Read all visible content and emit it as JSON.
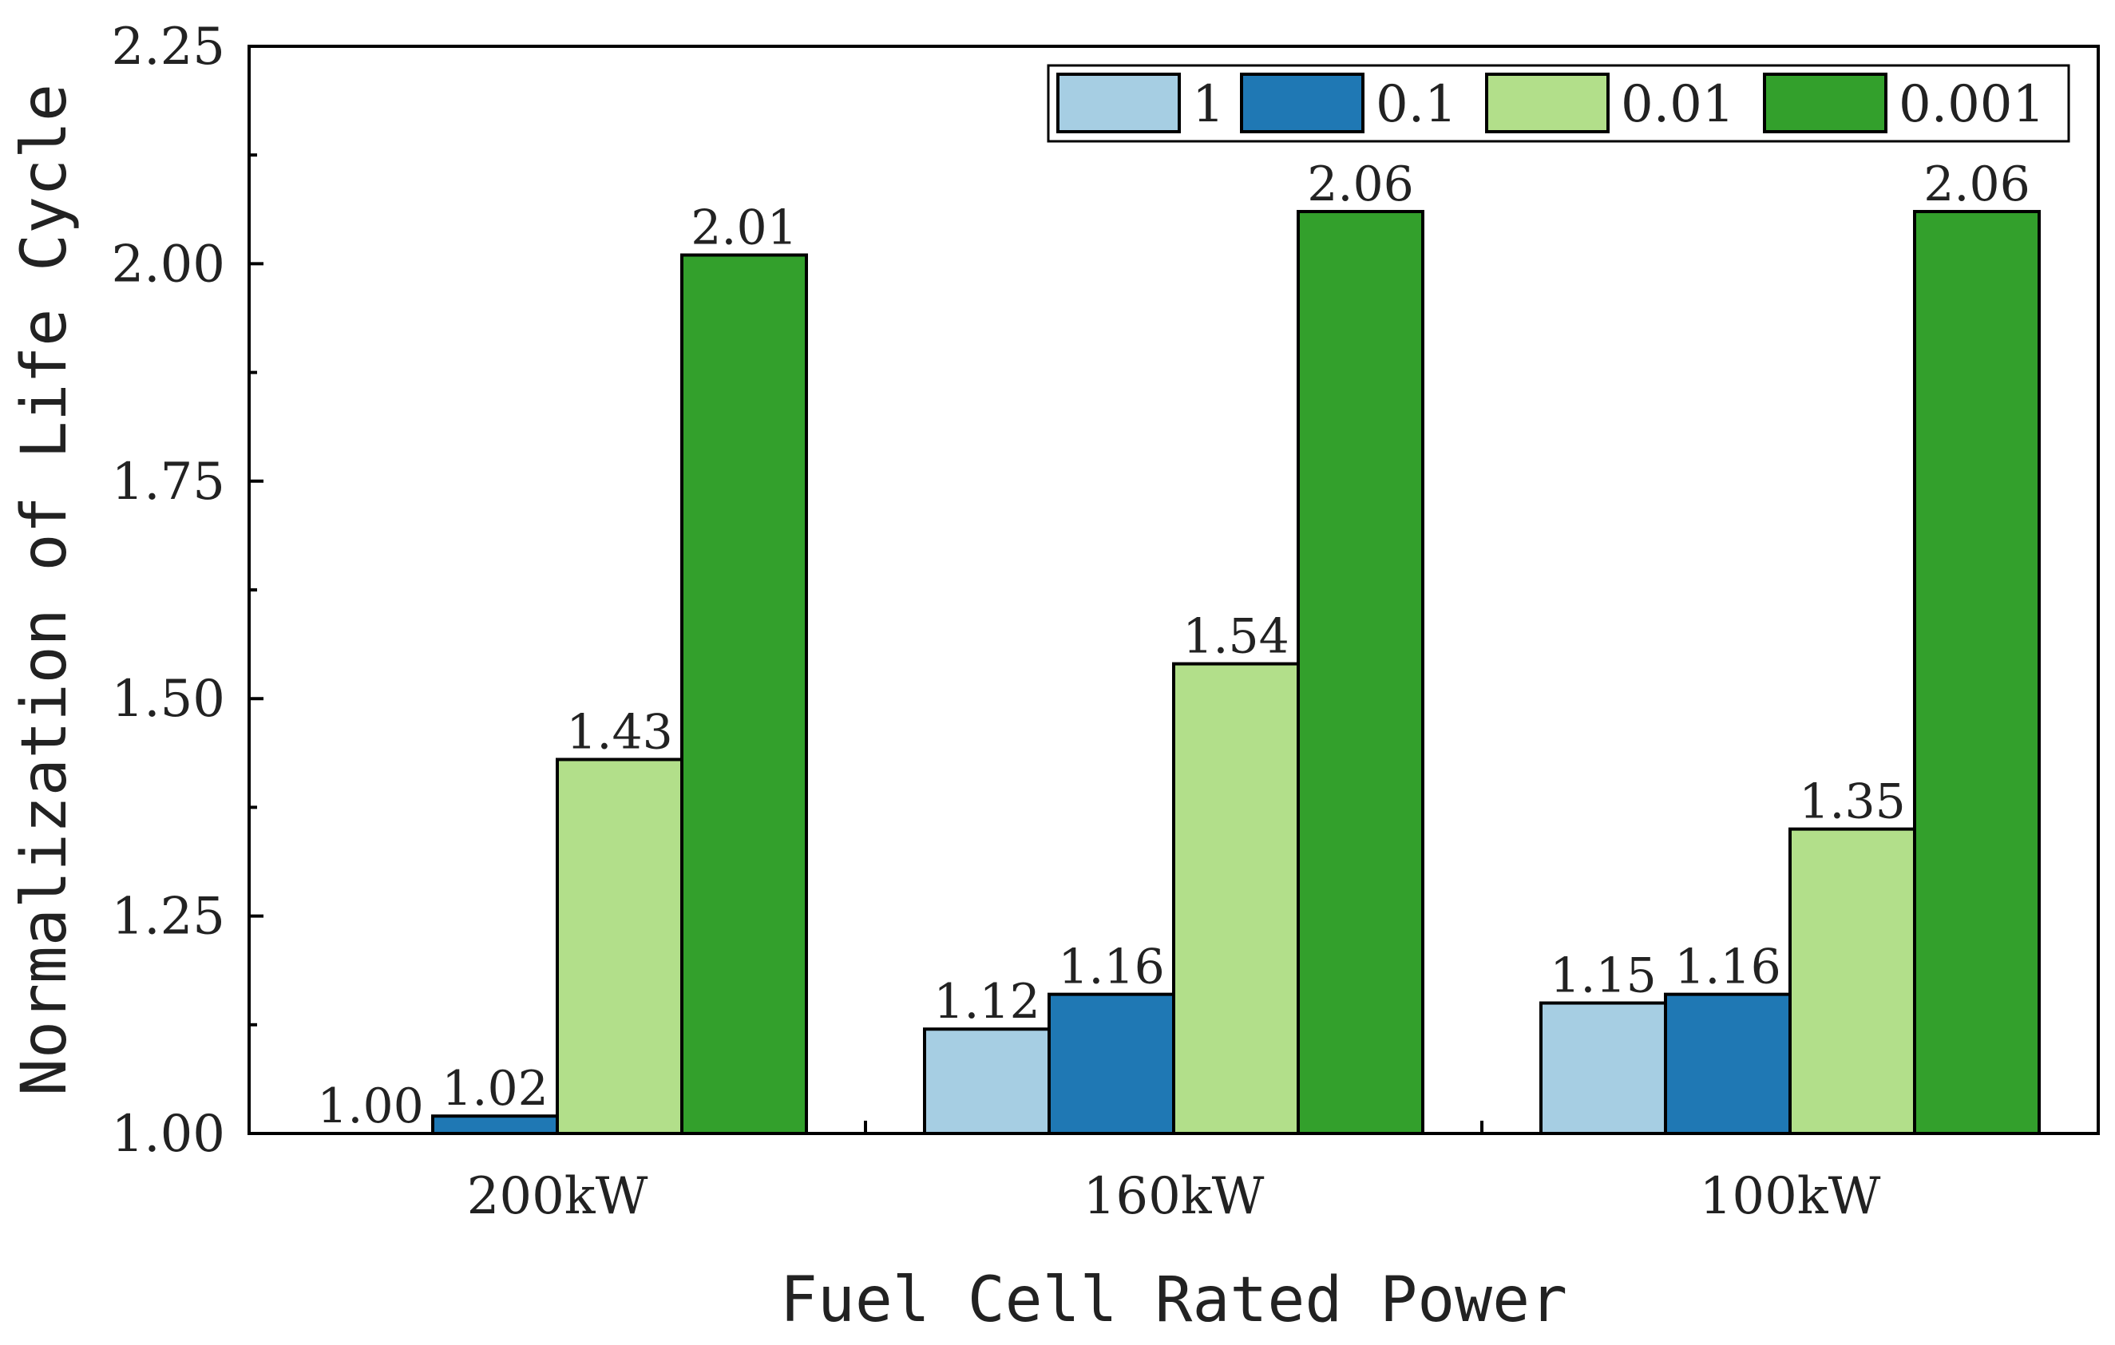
{
  "chart_data": {
    "type": "bar",
    "title": "",
    "xlabel": "Fuel Cell Rated Power",
    "ylabel": "Normalization of Life Cycle",
    "categories": [
      "200kW",
      "160kW",
      "100kW"
    ],
    "ylim": [
      1.0,
      2.25
    ],
    "yticks": [
      1.0,
      1.25,
      1.5,
      1.75,
      2.0,
      2.25
    ],
    "ytick_labels": [
      "1.00",
      "1.25",
      "1.50",
      "1.75",
      "2.00",
      "2.25"
    ],
    "legend_position": "top-right",
    "series": [
      {
        "name": "1",
        "color": "#a6cee3",
        "values": [
          1.0,
          1.12,
          1.15
        ],
        "labels": [
          "1.00",
          "1.12",
          "1.15"
        ]
      },
      {
        "name": "0.1",
        "color": "#1f78b4",
        "values": [
          1.02,
          1.16,
          1.16
        ],
        "labels": [
          "1.02",
          "1.16",
          "1.16"
        ]
      },
      {
        "name": "0.01",
        "color": "#b2df8a",
        "values": [
          1.43,
          1.54,
          1.35
        ],
        "labels": [
          "1.43",
          "1.54",
          "1.35"
        ]
      },
      {
        "name": "0.001",
        "color": "#33a02c",
        "values": [
          2.01,
          2.06,
          2.06
        ],
        "labels": [
          "2.01",
          "2.06",
          "2.06"
        ]
      }
    ]
  }
}
